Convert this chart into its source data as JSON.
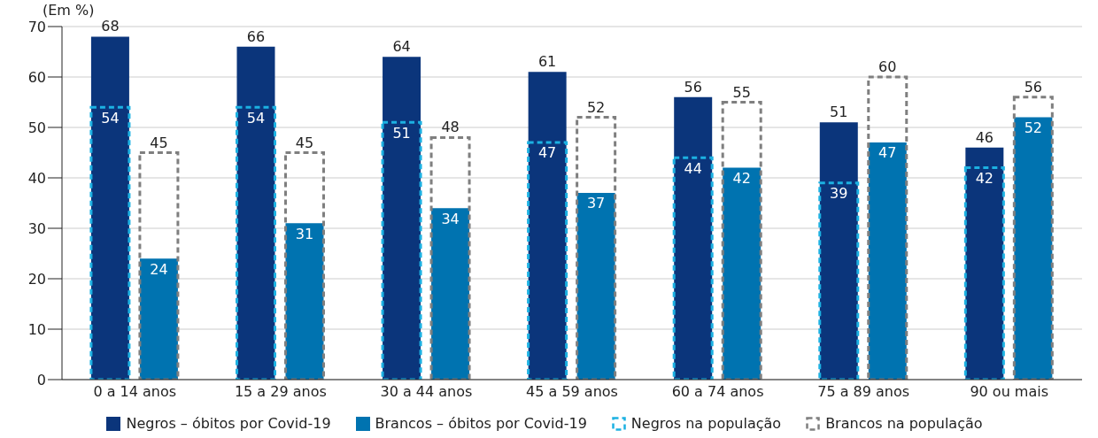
{
  "chart_data": {
    "type": "bar",
    "ylabel": "(Em %)",
    "categories": [
      "0 a 14 anos",
      "15 a 29 anos",
      "30 a 44 anos",
      "45 a 59 anos",
      "60 a 74 anos",
      "75 a 89 anos",
      "90 ou mais"
    ],
    "series": [
      {
        "name": "Negros – óbitos por Covid-19",
        "color": "#0b357b",
        "values": [
          68,
          66,
          64,
          61,
          56,
          51,
          46
        ]
      },
      {
        "name": "Brancos – óbitos por Covid-19",
        "color": "#0073b0",
        "values": [
          24,
          31,
          34,
          37,
          42,
          47,
          52
        ]
      },
      {
        "name": "Negros na população",
        "color": "#1cb1e2",
        "line_style": "dashed",
        "values": [
          54,
          54,
          51,
          47,
          44,
          39,
          42
        ]
      },
      {
        "name": "Brancos na população",
        "color": "#7f7f7f",
        "line_style": "dashed",
        "values": [
          45,
          45,
          48,
          52,
          55,
          60,
          56
        ]
      }
    ],
    "ylim": [
      0,
      70
    ],
    "yticks": [
      0,
      10,
      20,
      30,
      40,
      50,
      60,
      70
    ],
    "grid": "y",
    "legend": "bottom",
    "data_labels": true
  }
}
